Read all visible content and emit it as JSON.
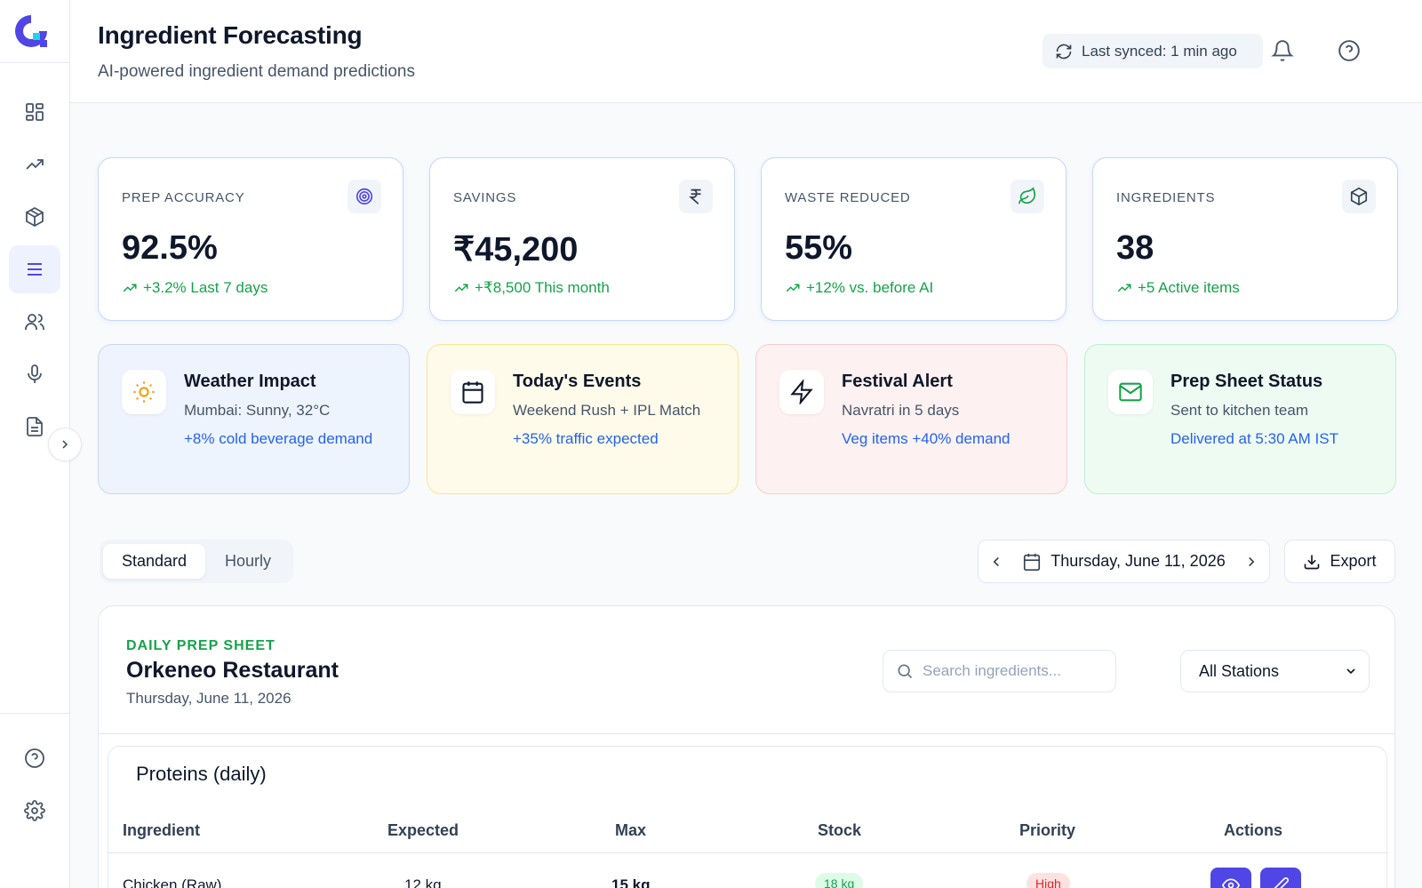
{
  "header": {
    "title": "Ingredient Forecasting",
    "subtitle": "AI-powered ingredient demand predictions",
    "sync_status": "Last synced: 1 min ago"
  },
  "sidebar": {
    "items": [
      {
        "icon": "dashboard-icon",
        "active": false
      },
      {
        "icon": "trending-icon",
        "active": false
      },
      {
        "icon": "package-icon",
        "active": false
      },
      {
        "icon": "menu-list-icon",
        "active": true
      },
      {
        "icon": "users-icon",
        "active": false
      },
      {
        "icon": "microphone-icon",
        "active": false
      },
      {
        "icon": "document-icon",
        "active": false
      }
    ],
    "bottom_items": [
      {
        "icon": "help-icon"
      },
      {
        "icon": "settings-icon"
      }
    ]
  },
  "kpis": [
    {
      "label": "PREP ACCURACY",
      "value": "92.5%",
      "trend": "+3.2% Last 7 days",
      "icon": "target-icon",
      "icon_color": "#4f46e5"
    },
    {
      "label": "SAVINGS",
      "value": "₹45,200",
      "trend": "+₹8,500 This month",
      "icon": "rupee-icon",
      "icon_color": "#334155"
    },
    {
      "label": "WASTE REDUCED",
      "value": "55%",
      "trend": "+12% vs. before AI",
      "icon": "leaf-icon",
      "icon_color": "#16a34a"
    },
    {
      "label": "INGREDIENTS",
      "value": "38",
      "trend": "+5 Active items",
      "icon": "box-icon",
      "icon_color": "#334155"
    }
  ],
  "context_cards": [
    {
      "title": "Weather Impact",
      "subtitle": "Mumbai: Sunny, 32°C",
      "note": "+8% cold beverage demand",
      "icon": "sun-icon",
      "bg": "#eef4fe",
      "border": "#c7d8f4",
      "icon_color": "#f59e0b"
    },
    {
      "title": "Today's Events",
      "subtitle": "Weekend Rush + IPL Match",
      "note": "+35% traffic expected",
      "icon": "calendar-icon",
      "bg": "#fefbea",
      "border": "#fde68a",
      "icon_color": "#0f172a"
    },
    {
      "title": "Festival Alert",
      "subtitle": "Navratri in 5 days",
      "note": "Veg items +40% demand",
      "icon": "lightning-icon",
      "bg": "#fdf1f1",
      "border": "#fbcaca",
      "icon_color": "#0f172a"
    },
    {
      "title": "Prep Sheet Status",
      "subtitle": "Sent to kitchen team",
      "note": "Delivered at 5:30 AM IST",
      "icon": "mail-icon",
      "bg": "#eefbf3",
      "border": "#bbf0cd",
      "icon_color": "#16a34a"
    }
  ],
  "toolbar": {
    "view_tabs": [
      "Standard",
      "Hourly"
    ],
    "active_tab": "Standard",
    "date": "Thursday, June 11, 2026",
    "export_label": "Export"
  },
  "prep_sheet": {
    "eyebrow": "DAILY PREP SHEET",
    "restaurant": "Orkeneo Restaurant",
    "date": "Thursday, June 11, 2026",
    "search_placeholder": "Search ingredients...",
    "station_filter": "All Stations",
    "section_title": "Proteins (daily)",
    "columns": [
      "Ingredient",
      "Expected",
      "Max",
      "Stock",
      "Priority",
      "Actions"
    ],
    "rows": [
      {
        "ingredient": "Chicken (Raw)",
        "expected": "12 kg",
        "max": "15 kg",
        "stock": "18 kg",
        "priority": "High"
      }
    ]
  },
  "colors": {
    "accent": "#4f46e5",
    "positive": "#16a34a",
    "link": "#2563eb"
  }
}
